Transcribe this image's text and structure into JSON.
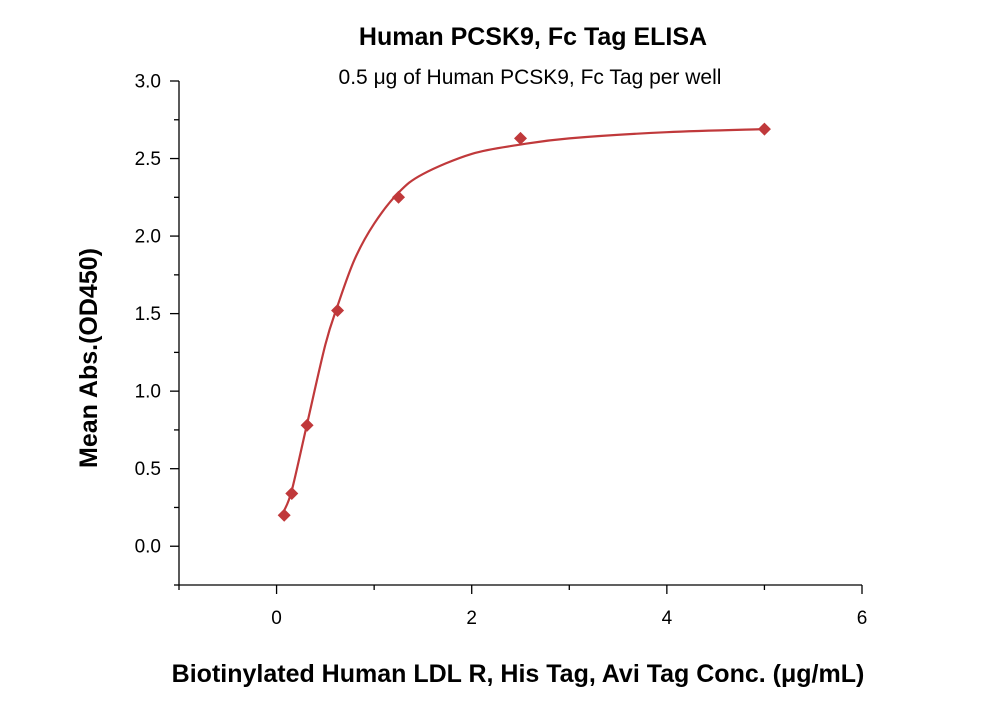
{
  "chart_data": {
    "type": "scatter",
    "title": "Human PCSK9, Fc Tag ELISA",
    "subtitle": "0.5 μg of Human PCSK9, Fc Tag per well",
    "xlabel": "Biotinylated Human LDL R, His Tag, Avi Tag Conc. (μg/mL)",
    "ylabel": "Mean Abs.(OD450)",
    "xlim": [
      -1,
      6
    ],
    "ylim": [
      -0.25,
      3.0
    ],
    "x_ticks": [
      0,
      2,
      4,
      6
    ],
    "x_tick_labels": [
      "0",
      "2",
      "4",
      "6"
    ],
    "x_minor_ticks": [
      -1,
      1,
      3,
      5
    ],
    "y_ticks": [
      0.0,
      0.5,
      1.0,
      1.5,
      2.0,
      2.5,
      3.0
    ],
    "y_tick_labels": [
      "0.0",
      "0.5",
      "1.0",
      "1.5",
      "2.0",
      "2.5",
      "3.0"
    ],
    "y_minor_ticks": [
      -0.25,
      0.25,
      0.75,
      1.25,
      1.75,
      2.25,
      2.75
    ],
    "grid": false,
    "series": [
      {
        "marker": "diamond",
        "color": "#c0393b",
        "x": [
          0.078,
          0.156,
          0.313,
          0.625,
          1.25,
          2.5,
          5.0
        ],
        "y": [
          0.2,
          0.34,
          0.78,
          1.52,
          2.25,
          2.63,
          2.69
        ]
      }
    ],
    "fit_curve": {
      "color": "#c0393b",
      "x": [
        0.078,
        0.156,
        0.313,
        0.5,
        0.625,
        0.8,
        1.0,
        1.25,
        1.5,
        2.0,
        2.5,
        3.0,
        4.0,
        5.0
      ],
      "y": [
        0.23,
        0.36,
        0.79,
        1.3,
        1.55,
        1.85,
        2.08,
        2.28,
        2.4,
        2.53,
        2.59,
        2.63,
        2.67,
        2.69
      ]
    }
  }
}
